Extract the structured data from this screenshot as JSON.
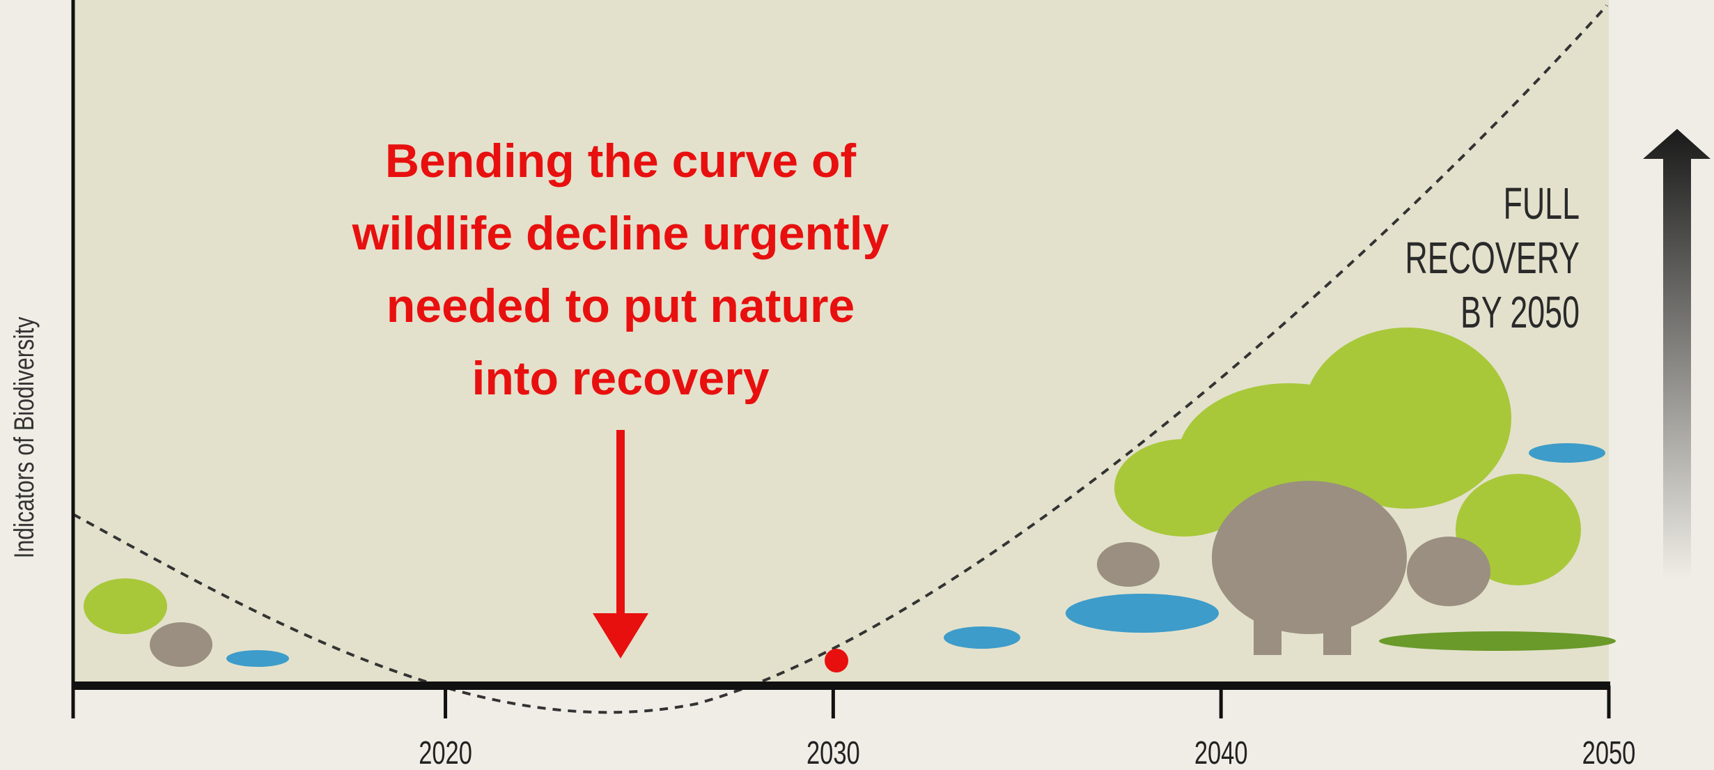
{
  "chart_data": {
    "type": "line",
    "y_label": "Indicators of Biodiversity",
    "annotation": [
      "Bending the curve of",
      "wildlife decline urgently",
      "needed to put nature",
      "into recovery"
    ],
    "goal_label": [
      "FULL",
      "RECOVERY",
      "BY 2050"
    ],
    "xlim": [
      2010.4,
      2050
    ],
    "xticks": [
      2020,
      2030,
      2040,
      2050
    ]
  }
}
